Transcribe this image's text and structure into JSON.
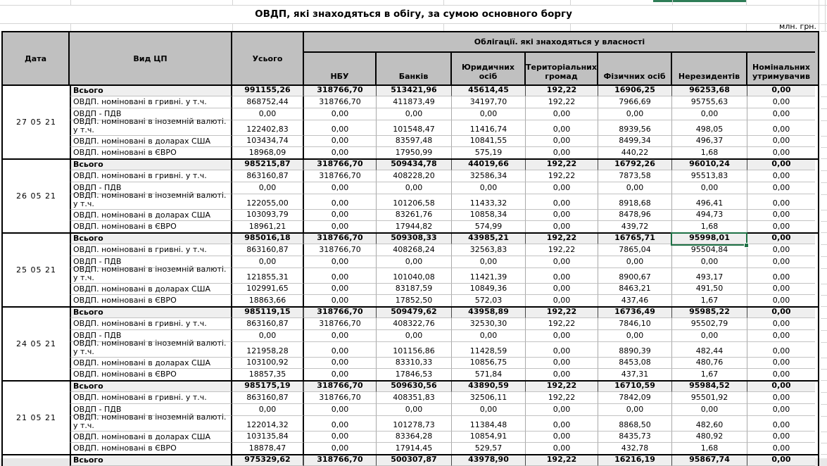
{
  "sheet": {
    "title": "ОВДП, які знаходяться в обігу, за сумою основного боргу",
    "units_label": "млн. грн."
  },
  "table": {
    "headers": {
      "date": "Дата",
      "security_type": "Вид ЦП",
      "total": "Усього",
      "ownership_group": "Облігації. які знаходяться у власності",
      "owners": [
        "НБУ",
        "Банків",
        "Юридичних осіб",
        "Територіальних громад",
        "Фізичних осіб",
        "Нерезидентів",
        "Номінальних утримувачив"
      ]
    },
    "row_labels": [
      "Всього",
      "ОВДП. номіновані в гривні. у т.ч.",
      "ОВДП - ПДВ",
      "ОВДП. номіновані в іноземній валюті. у т.ч.",
      "ОВДП. номіновані в доларах США",
      "ОВДП. номіновані в ЄВРО"
    ],
    "blocks": [
      {
        "date": "27 05 21",
        "rows": [
          [
            "991155,26",
            "318766,70",
            "513421,96",
            "45614,45",
            "192,22",
            "16906,25",
            "96253,68",
            "0,00"
          ],
          [
            "868752,44",
            "318766,70",
            "411873,49",
            "34197,70",
            "192,22",
            "7966,69",
            "95755,63",
            "0,00"
          ],
          [
            "0,00",
            "0,00",
            "0,00",
            "0,00",
            "0,00",
            "0,00",
            "0,00",
            "0,00"
          ],
          [
            "122402,83",
            "0,00",
            "101548,47",
            "11416,74",
            "0,00",
            "8939,56",
            "498,05",
            "0,00"
          ],
          [
            "103434,74",
            "0,00",
            "83597,48",
            "10841,55",
            "0,00",
            "8499,34",
            "496,37",
            "0,00"
          ],
          [
            "18968,09",
            "0,00",
            "17950,99",
            "575,19",
            "0,00",
            "440,22",
            "1,68",
            "0,00"
          ]
        ]
      },
      {
        "date": "26 05 21",
        "rows": [
          [
            "985215,87",
            "318766,70",
            "509434,78",
            "44019,66",
            "192,22",
            "16792,26",
            "96010,24",
            "0,00"
          ],
          [
            "863160,87",
            "318766,70",
            "408228,20",
            "32586,34",
            "192,22",
            "7873,58",
            "95513,83",
            "0,00"
          ],
          [
            "0,00",
            "0,00",
            "0,00",
            "0,00",
            "0,00",
            "0,00",
            "0,00",
            "0,00"
          ],
          [
            "122055,00",
            "0,00",
            "101206,58",
            "11433,32",
            "0,00",
            "8918,68",
            "496,41",
            "0,00"
          ],
          [
            "103093,79",
            "0,00",
            "83261,76",
            "10858,34",
            "0,00",
            "8478,96",
            "494,73",
            "0,00"
          ],
          [
            "18961,21",
            "0,00",
            "17944,82",
            "574,99",
            "0,00",
            "439,72",
            "1,68",
            "0,00"
          ]
        ]
      },
      {
        "date": "25 05 21",
        "rows": [
          [
            "985016,18",
            "318766,70",
            "509308,33",
            "43985,21",
            "192,22",
            "16765,71",
            "95998,01",
            "0,00"
          ],
          [
            "863160,87",
            "318766,70",
            "408268,24",
            "32563,83",
            "192,22",
            "7865,04",
            "95504,84",
            "0,00"
          ],
          [
            "0,00",
            "0,00",
            "0,00",
            "0,00",
            "0,00",
            "0,00",
            "0,00",
            "0,00"
          ],
          [
            "121855,31",
            "0,00",
            "101040,08",
            "11421,39",
            "0,00",
            "8900,67",
            "493,17",
            "0,00"
          ],
          [
            "102991,65",
            "0,00",
            "83187,59",
            "10849,36",
            "0,00",
            "8463,21",
            "491,50",
            "0,00"
          ],
          [
            "18863,66",
            "0,00",
            "17852,50",
            "572,03",
            "0,00",
            "437,46",
            "1,67",
            "0,00"
          ]
        ]
      },
      {
        "date": "24 05 21",
        "rows": [
          [
            "985119,15",
            "318766,70",
            "509479,62",
            "43958,89",
            "192,22",
            "16736,49",
            "95985,22",
            "0,00"
          ],
          [
            "863160,87",
            "318766,70",
            "408322,76",
            "32530,30",
            "192,22",
            "7846,10",
            "95502,79",
            "0,00"
          ],
          [
            "0,00",
            "0,00",
            "0,00",
            "0,00",
            "0,00",
            "0,00",
            "0,00",
            "0,00"
          ],
          [
            "121958,28",
            "0,00",
            "101156,86",
            "11428,59",
            "0,00",
            "8890,39",
            "482,44",
            "0,00"
          ],
          [
            "103100,92",
            "0,00",
            "83310,33",
            "10856,75",
            "0,00",
            "8453,08",
            "480,76",
            "0,00"
          ],
          [
            "18857,35",
            "0,00",
            "17846,53",
            "571,84",
            "0,00",
            "437,31",
            "1,67",
            "0,00"
          ]
        ]
      },
      {
        "date": "21 05 21",
        "rows": [
          [
            "985175,19",
            "318766,70",
            "509630,56",
            "43890,59",
            "192,22",
            "16710,59",
            "95984,52",
            "0,00"
          ],
          [
            "863160,87",
            "318766,70",
            "408351,83",
            "32506,11",
            "192,22",
            "7842,09",
            "95501,92",
            "0,00"
          ],
          [
            "0,00",
            "0,00",
            "0,00",
            "0,00",
            "0,00",
            "0,00",
            "0,00",
            "0,00"
          ],
          [
            "122014,32",
            "0,00",
            "101278,73",
            "11384,48",
            "0,00",
            "8868,50",
            "482,60",
            "0,00"
          ],
          [
            "103135,84",
            "0,00",
            "83364,28",
            "10854,91",
            "0,00",
            "8435,73",
            "480,92",
            "0,00"
          ],
          [
            "18878,47",
            "0,00",
            "17914,45",
            "529,57",
            "0,00",
            "432,78",
            "1,68",
            "0,00"
          ]
        ]
      },
      {
        "date": "",
        "rows": [
          [
            "975329,62",
            "318766,70",
            "500307,87",
            "43978,90",
            "192,22",
            "16216,19",
            "95867,74",
            "0,00"
          ]
        ]
      }
    ]
  },
  "selection": {
    "block_index": 2,
    "row_label": "Всього",
    "column": "Нерезидентів",
    "value": "95998,01",
    "accent_color": "#1e7145"
  }
}
